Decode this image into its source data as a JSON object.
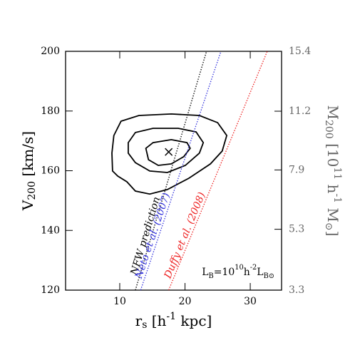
{
  "chart_data": {
    "type": "line",
    "xlabel": [
      {
        "t": "r"
      },
      {
        "t": "s",
        "sub": true
      },
      {
        "t": " [h"
      },
      {
        "t": "-1",
        "sup": true
      },
      {
        "t": " kpc]"
      }
    ],
    "ylabel": [
      {
        "t": "V"
      },
      {
        "t": "200",
        "sub": true
      },
      {
        "t": " [km/s]"
      }
    ],
    "y2label": [
      {
        "t": "M"
      },
      {
        "t": "200",
        "sub": true
      },
      {
        "t": " [10"
      },
      {
        "t": "11",
        "sup": true
      },
      {
        "t": " h"
      },
      {
        "t": "-1",
        "sup": true
      },
      {
        "t": " M"
      },
      {
        "t": "⊙",
        "sub": true
      },
      {
        "t": "]"
      }
    ],
    "annotation": [
      {
        "t": "L"
      },
      {
        "t": "B",
        "sub": true
      },
      {
        "t": "=10"
      },
      {
        "t": "10",
        "sup": true
      },
      {
        "t": "h"
      },
      {
        "t": "-2",
        "sup": true
      },
      {
        "t": "L"
      },
      {
        "t": "B⊙",
        "sub": true
      }
    ],
    "xlim": [
      1.7,
      34.8
    ],
    "xticks": [
      10,
      20,
      30
    ],
    "ylim": [
      120,
      200
    ],
    "yticks": [
      120,
      140,
      160,
      180,
      200
    ],
    "y2lim": [
      3.3,
      15.4
    ],
    "y2ticks": [
      3.3,
      5.3,
      7.9,
      11.2,
      15.4
    ],
    "y2scale": "cbrt",
    "y2color": "#666666",
    "series": [
      {
        "color": "#000000",
        "closed": true,
        "x": [
          9.1,
          10.2,
          12.95,
          17.9,
          22.2,
          25.0,
          26.4,
          25.7,
          23.9,
          20.6,
          17.3,
          14.6,
          12.4,
          11.1,
          9.7,
          8.9,
          8.8
        ],
        "values": [
          171.8,
          176.6,
          178.5,
          179.0,
          178.5,
          176.1,
          171.8,
          166.6,
          162.3,
          157.5,
          153.7,
          152.2,
          153.2,
          156.3,
          158.2,
          159.9,
          165.9
        ]
      },
      {
        "color": "#000000",
        "closed": true,
        "x": [
          11.3,
          12.4,
          15.1,
          18.96,
          21.7,
          22.8,
          22.2,
          20.05,
          17.3,
          14.6,
          12.4,
          11.3
        ],
        "values": [
          169.4,
          172.8,
          174.2,
          174.2,
          173.0,
          169.4,
          165.9,
          161.8,
          159.4,
          159.9,
          162.7,
          165.9
        ]
      },
      {
        "color": "#000000",
        "closed": true,
        "x": [
          14.0,
          15.1,
          17.9,
          20.3,
          20.8,
          19.8,
          17.9,
          15.9,
          14.4
        ],
        "values": [
          167.5,
          169.4,
          170.4,
          169.4,
          167.5,
          164.7,
          162.3,
          161.8,
          163.7
        ]
      },
      {
        "color": "#000000",
        "dash": true,
        "label": "NFW prediction",
        "x": [
          12.4,
          23.3
        ],
        "values": [
          120,
          200
        ]
      },
      {
        "color": "#3333dd",
        "dash": true,
        "label": "Neto et al. (2007)",
        "x": [
          13.2,
          25.5
        ],
        "values": [
          120,
          200
        ]
      },
      {
        "color": "#ee2222",
        "dash": true,
        "label": "Duffy et al. (2008)",
        "x": [
          17.5,
          32.6
        ],
        "values": [
          120,
          200
        ]
      }
    ],
    "markers": [
      {
        "x": 17.5,
        "y": 166.3,
        "symbol": "x",
        "color": "#000000"
      }
    ]
  }
}
